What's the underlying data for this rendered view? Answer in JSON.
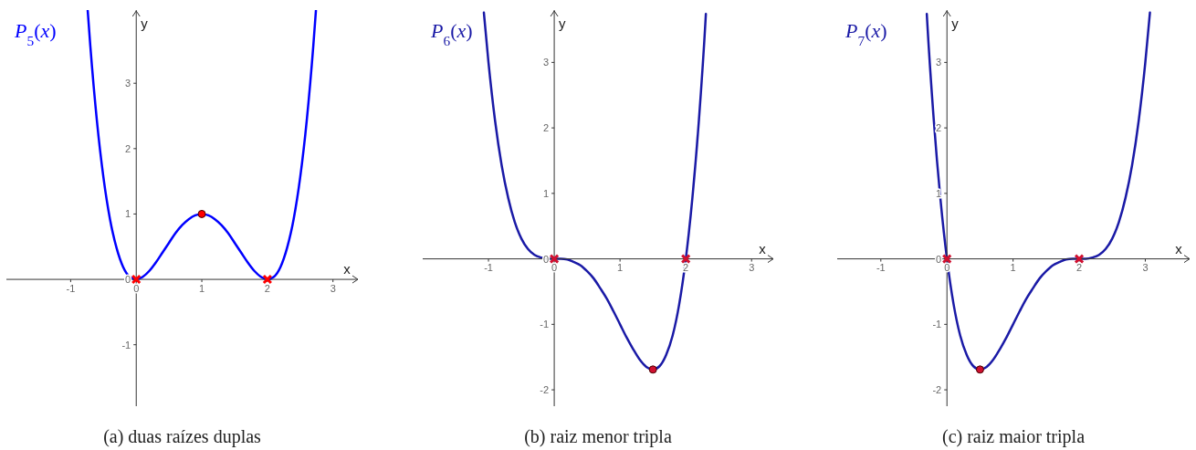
{
  "chart_data": [
    {
      "type": "line",
      "xlabel": "x",
      "ylabel": "y",
      "annotations": [
        "(a) duas raízes duplas"
      ],
      "xlim": [
        -1.98,
        3.38
      ],
      "ylim": [
        -1.94,
        4.12
      ],
      "xticks": [
        -1,
        0,
        1,
        2,
        3
      ],
      "yticks": [
        -1,
        0,
        1,
        2,
        3
      ],
      "series": [
        {
          "name": "P$_{5}$(x)",
          "color": "#0000ff",
          "x": [
            -0.74,
            -0.7,
            -0.6,
            -0.5,
            -0.4,
            -0.3,
            -0.2,
            -0.1,
            0,
            0.1,
            0.2,
            0.3,
            0.4,
            0.5,
            0.6,
            0.7,
            0.8,
            0.9,
            1,
            1.1,
            1.2,
            1.3,
            1.4,
            1.5,
            1.6,
            1.7,
            1.8,
            1.9,
            2,
            2.1,
            2.2,
            2.3,
            2.4,
            2.5,
            2.6,
            2.7,
            2.74
          ],
          "values": [
            4.11,
            3.57,
            2.43,
            1.56,
            0.92,
            0.48,
            0.19,
            0.04,
            0,
            0.04,
            0.13,
            0.26,
            0.41,
            0.56,
            0.71,
            0.83,
            0.92,
            0.98,
            1,
            0.98,
            0.92,
            0.83,
            0.71,
            0.56,
            0.41,
            0.26,
            0.13,
            0.04,
            0,
            0.04,
            0.19,
            0.48,
            0.92,
            1.56,
            2.43,
            3.57,
            4.11
          ]
        },
        {
          "type": "scatter",
          "color": "#ff0000",
          "marker": "cross",
          "x": [
            0,
            2
          ],
          "values": [
            0,
            0
          ]
        },
        {
          "type": "scatter",
          "color": "#ff0000",
          "marker": "circle",
          "x": [
            1
          ],
          "values": [
            1
          ]
        }
      ]
    },
    {
      "type": "line",
      "xlabel": "x",
      "ylabel": "y",
      "annotations": [
        "(b) raiz menor tripla"
      ],
      "xlim": [
        -2,
        3.33
      ],
      "ylim": [
        -2.25,
        3.8
      ],
      "xticks": [
        -1,
        0,
        1,
        2,
        3
      ],
      "yticks": [
        -2,
        -1,
        0,
        1,
        2,
        3
      ],
      "series": [
        {
          "name": "P$_{6}$(x)",
          "color": "#1a1aa6",
          "x": [
            -1.07,
            -1,
            -0.9,
            -0.8,
            -0.7,
            -0.6,
            -0.5,
            -0.4,
            -0.3,
            -0.2,
            -0.1,
            0,
            0.1,
            0.2,
            0.3,
            0.4,
            0.5,
            0.6,
            0.7,
            0.8,
            0.9,
            1,
            1.1,
            1.2,
            1.3,
            1.4,
            1.5,
            1.6,
            1.7,
            1.8,
            1.9,
            2,
            2.1,
            2.2,
            2.3,
            2.305
          ],
          "values": [
            3.76,
            3,
            2.11,
            1.43,
            0.93,
            0.56,
            0.31,
            0.15,
            0.06,
            0.02,
            0,
            0,
            0,
            -0.01,
            -0.05,
            -0.1,
            -0.19,
            -0.3,
            -0.45,
            -0.61,
            -0.8,
            -1,
            -1.2,
            -1.38,
            -1.54,
            -1.65,
            -1.69,
            -1.64,
            -1.47,
            -1.17,
            -0.69,
            0,
            0.93,
            2.13,
            3.65,
            3.74
          ]
        },
        {
          "type": "scatter",
          "color": "#d01030",
          "marker": "cross",
          "x": [
            0,
            2
          ],
          "values": [
            0,
            0
          ]
        },
        {
          "type": "scatter",
          "color": "#d01030",
          "marker": "circle",
          "x": [
            1.5
          ],
          "values": [
            -1.69
          ]
        }
      ]
    },
    {
      "type": "line",
      "xlabel": "x",
      "ylabel": "y",
      "annotations": [
        "(c) raiz maior tripla"
      ],
      "xlim": [
        -1.66,
        3.67
      ],
      "ylim": [
        -2.25,
        3.8
      ],
      "xticks": [
        -1,
        0,
        1,
        2,
        3
      ],
      "yticks": [
        -2,
        -1,
        0,
        1,
        2,
        3
      ],
      "series": [
        {
          "name": "P$_{7}$(x)",
          "color": "#1a1aa6",
          "x": [
            -0.305,
            -0.3,
            -0.2,
            -0.1,
            0,
            0.1,
            0.2,
            0.3,
            0.4,
            0.5,
            0.6,
            0.7,
            0.8,
            0.9,
            1,
            1.1,
            1.2,
            1.3,
            1.4,
            1.5,
            1.6,
            1.7,
            1.8,
            1.9,
            2,
            2.1,
            2.2,
            2.3,
            2.4,
            2.5,
            2.6,
            2.7,
            2.8,
            2.9,
            3,
            3.07
          ],
          "values": [
            3.74,
            3.65,
            2.13,
            0.93,
            0,
            -0.69,
            -1.17,
            -1.47,
            -1.64,
            -1.69,
            -1.65,
            -1.54,
            -1.38,
            -1.2,
            -1,
            -0.8,
            -0.61,
            -0.45,
            -0.3,
            -0.19,
            -0.1,
            -0.05,
            -0.01,
            0,
            0,
            0,
            0.02,
            0.06,
            0.15,
            0.31,
            0.56,
            0.93,
            1.43,
            2.11,
            3,
            3.76
          ]
        },
        {
          "type": "scatter",
          "color": "#d01030",
          "marker": "cross",
          "x": [
            0,
            2
          ],
          "values": [
            0,
            0
          ]
        },
        {
          "type": "scatter",
          "color": "#d01030",
          "marker": "circle",
          "x": [
            0.5
          ],
          "values": [
            -1.69
          ]
        }
      ]
    }
  ]
}
